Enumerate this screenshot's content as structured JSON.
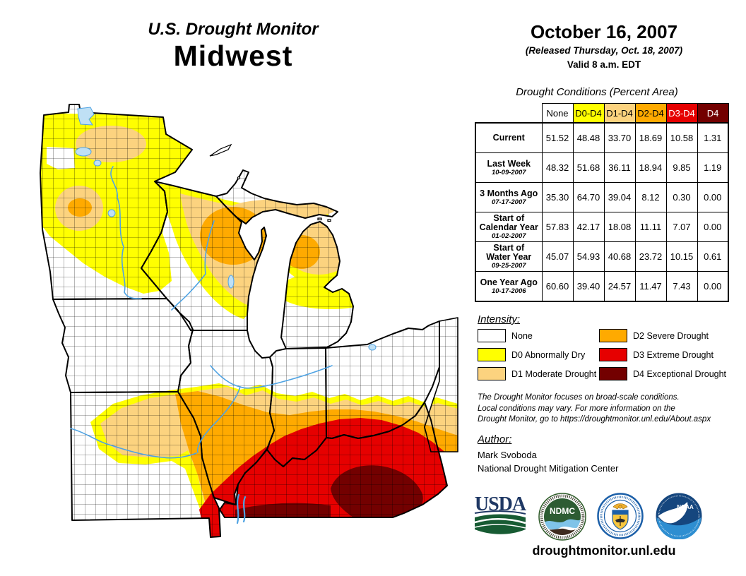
{
  "header": {
    "app_title": "U.S. Drought Monitor",
    "region": "Midwest",
    "date": "October 16, 2007",
    "released": "(Released Thursday, Oct. 18, 2007)",
    "valid": "Valid 8 a.m. EDT"
  },
  "table": {
    "title": "Drought Conditions (Percent Area)",
    "columns": [
      "None",
      "D0-D4",
      "D1-D4",
      "D2-D4",
      "D3-D4",
      "D4"
    ],
    "header_colors": [
      "#FFFFFF",
      "#FFFF00",
      "#FCD37F",
      "#FFAA00",
      "#E60000",
      "#730000"
    ],
    "header_text_colors": [
      "#000000",
      "#000000",
      "#000000",
      "#000000",
      "#FFFFFF",
      "#FFFFFF"
    ],
    "rows": [
      {
        "label": "Current",
        "date": "",
        "values": [
          "51.52",
          "48.48",
          "33.70",
          "18.69",
          "10.58",
          "1.31"
        ]
      },
      {
        "label": "Last Week",
        "date": "10-09-2007",
        "values": [
          "48.32",
          "51.68",
          "36.11",
          "18.94",
          "9.85",
          "1.19"
        ]
      },
      {
        "label": "3 Months Ago",
        "date": "07-17-2007",
        "values": [
          "35.30",
          "64.70",
          "39.04",
          "8.12",
          "0.30",
          "0.00"
        ]
      },
      {
        "label": "Start of\nCalendar Year",
        "date": "01-02-2007",
        "values": [
          "57.83",
          "42.17",
          "18.08",
          "11.11",
          "7.07",
          "0.00"
        ]
      },
      {
        "label": "Start of\nWater Year",
        "date": "09-25-2007",
        "values": [
          "45.07",
          "54.93",
          "40.68",
          "23.72",
          "10.15",
          "0.61"
        ]
      },
      {
        "label": "One Year Ago",
        "date": "10-17-2006",
        "values": [
          "60.60",
          "39.40",
          "24.57",
          "11.47",
          "7.43",
          "0.00"
        ]
      }
    ]
  },
  "legend": {
    "title": "Intensity:",
    "items": [
      {
        "label": "None",
        "color": "#FFFFFF"
      },
      {
        "label": "D0 Abnormally Dry",
        "color": "#FFFF00"
      },
      {
        "label": "D1 Moderate Drought",
        "color": "#FCD37F"
      },
      {
        "label": "D2 Severe Drought",
        "color": "#FFAA00"
      },
      {
        "label": "D3 Extreme Drought",
        "color": "#E60000"
      },
      {
        "label": "D4 Exceptional Drought",
        "color": "#730000"
      }
    ]
  },
  "notes": {
    "lines": [
      "The Drought Monitor focuses on broad-scale conditions.",
      "Local conditions may vary. For more information on the",
      "Drought Monitor, go to https://droughtmonitor.unl.edu/About.aspx"
    ]
  },
  "author": {
    "title": "Author:",
    "name": "Mark Svoboda",
    "org": "National Drought Mitigation Center"
  },
  "footer": {
    "website": "droughtmonitor.unl.edu"
  },
  "logos": [
    {
      "id": "usda",
      "text": "USDA"
    },
    {
      "id": "ndmc",
      "text": "NDMC"
    },
    {
      "id": "doc",
      "text": ""
    },
    {
      "id": "noaa",
      "text": "NOAA"
    }
  ],
  "map": {
    "colors": {
      "none": "#FFFFFF",
      "d0": "#FFFF00",
      "d1": "#FCD37F",
      "d2": "#FFAA00",
      "d3": "#E60000",
      "d4": "#730000"
    },
    "water": "#4FA3E3"
  }
}
